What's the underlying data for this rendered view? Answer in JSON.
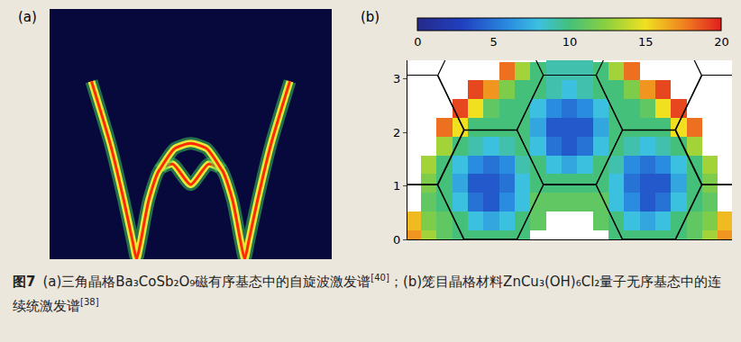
{
  "chart_data": [
    {
      "type": "line",
      "title": "(a)",
      "tick_labels": false,
      "xlim": [
        -1,
        1
      ],
      "ylim": [
        0,
        1
      ],
      "series": [
        {
          "color": "#ff2a00",
          "x": [
            -0.703,
            -0.571,
            -0.474,
            -0.411,
            -0.383,
            -0.354,
            -0.297,
            -0.217,
            -0.126,
            0,
            0.126,
            0.217,
            0.297,
            0.354,
            0.383,
            0.411,
            0.474,
            0.571,
            0.703
          ],
          "values": [
            0.711,
            0.463,
            0.236,
            0.07,
            0,
            0.07,
            0.236,
            0.36,
            0.38,
            0.298,
            0.38,
            0.36,
            0.236,
            0.07,
            0,
            0.07,
            0.236,
            0.463,
            0.711
          ]
        },
        {
          "color": "#ff2a00",
          "x": [
            -0.217,
            -0.114,
            0,
            0.114,
            0.217
          ],
          "values": [
            0.36,
            0.442,
            0.463,
            0.442,
            0.36
          ]
        }
      ]
    },
    {
      "type": "heatmap",
      "title": "(b)",
      "tick_labels": "y",
      "xlim": [
        -3.63,
        3.63
      ],
      "ylim": [
        0,
        3.35
      ],
      "yticks": [
        0,
        1,
        2,
        3
      ],
      "zlim": [
        0,
        20
      ],
      "colorbar_ticks": [
        0,
        5,
        10,
        15,
        20
      ],
      "x": [
        -3.5,
        -3.15,
        -2.8,
        -2.45,
        -2.1,
        -1.75,
        -1.4,
        -1.05,
        -0.7,
        -0.35,
        0,
        0.35,
        0.7,
        1.05,
        1.4,
        1.75,
        2.1,
        2.45,
        2.8,
        3.15,
        3.5
      ],
      "y": [
        0,
        0.35,
        0.7,
        1.05,
        1.4,
        1.75,
        2.1,
        2.45,
        2.8,
        3.15,
        3.5
      ],
      "z": [
        [
          17,
          13,
          11,
          10,
          10,
          10,
          10,
          10,
          null,
          null,
          null,
          null,
          null,
          10,
          10,
          10,
          10,
          10,
          11,
          13,
          17
        ],
        [
          16,
          12,
          11,
          10,
          8,
          7,
          8,
          10,
          11,
          null,
          null,
          null,
          11,
          10,
          8,
          7,
          8,
          10,
          11,
          12,
          16
        ],
        [
          null,
          11,
          10,
          8,
          5,
          4,
          6,
          8,
          11,
          11,
          11,
          11,
          11,
          8,
          6,
          4,
          5,
          8,
          10,
          11,
          null
        ],
        [
          null,
          12,
          10,
          7,
          4,
          4,
          5,
          8,
          10,
          10,
          10,
          10,
          10,
          8,
          5,
          4,
          4,
          7,
          10,
          12,
          null
        ],
        [
          null,
          13,
          10,
          8,
          6,
          5,
          6,
          9,
          10,
          8,
          7,
          8,
          10,
          9,
          6,
          5,
          6,
          8,
          10,
          13,
          null
        ],
        [
          null,
          null,
          13,
          10,
          9,
          8,
          9,
          10,
          8,
          5,
          4,
          5,
          8,
          10,
          9,
          8,
          9,
          10,
          13,
          null,
          null
        ],
        [
          null,
          null,
          18,
          15,
          10,
          10,
          10,
          10,
          7,
          4,
          4,
          4,
          7,
          10,
          10,
          10,
          10,
          15,
          18,
          null,
          null
        ],
        [
          null,
          null,
          null,
          19,
          15,
          11,
          10,
          10,
          8,
          6,
          5,
          6,
          8,
          10,
          10,
          11,
          15,
          19,
          null,
          null,
          null
        ],
        [
          null,
          null,
          null,
          null,
          19,
          17,
          12,
          10,
          10,
          9,
          8,
          9,
          10,
          10,
          12,
          17,
          19,
          null,
          null,
          null,
          null
        ],
        [
          null,
          null,
          null,
          null,
          null,
          null,
          18,
          13,
          10,
          9,
          9,
          9,
          10,
          13,
          18,
          null,
          null,
          null,
          null,
          null,
          null
        ],
        [
          null,
          null,
          null,
          null,
          null,
          null,
          null,
          null,
          null,
          9,
          9,
          9,
          null,
          null,
          null,
          null,
          null,
          null,
          null,
          null,
          null
        ]
      ],
      "zone_radius": 1.18,
      "zone_centers": [
        [
          0,
          0
        ],
        [
          0,
          2.05
        ],
        [
          -1.77,
          1.02
        ],
        [
          1.77,
          1.02
        ],
        [
          -1.77,
          3.07
        ],
        [
          1.77,
          3.07
        ],
        [
          -1.77,
          -1.02
        ],
        [
          1.77,
          -1.02
        ],
        [
          -3.55,
          0
        ],
        [
          3.55,
          0
        ],
        [
          -3.55,
          2.05
        ],
        [
          3.55,
          2.05
        ]
      ]
    }
  ],
  "caption": {
    "label": "图7",
    "parts": [
      {
        "text": "(a)三角晶格Ba₃CoSb₂O₉磁有序基态中的自旋波激发谱",
        "ref": "[40]"
      },
      {
        "text": "；(b)笼目晶格材料ZnCu₃(OH)₆Cl₂量子无序基态中的连续统激发谱",
        "ref": "[38]"
      }
    ]
  }
}
